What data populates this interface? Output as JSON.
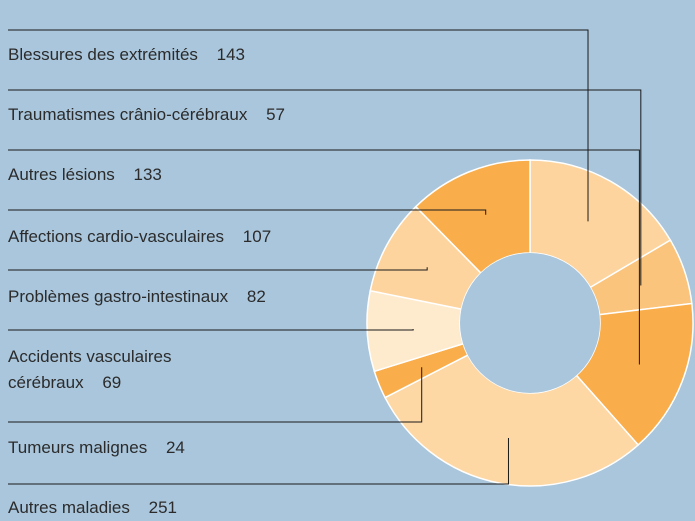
{
  "chart_data": {
    "type": "donut",
    "categories": [
      "Blessures des extrémités",
      "Traumatismes crânio-cérébraux",
      "Autres lésions",
      "Affections cardio-vasculaires",
      "Problèmes gastro-intestinaux",
      "Accidents vasculaires cérébraux",
      "Tumeurs malignes",
      "Autres maladies"
    ],
    "values": [
      143,
      57,
      133,
      107,
      82,
      69,
      24,
      251
    ],
    "colors": [
      "#fdd49e",
      "#fbc47c",
      "#f9ae4b",
      "#f9ae4b",
      "#fdd49e",
      "#feeacd",
      "#f9ae4b",
      "#fdd7a4"
    ]
  }
}
